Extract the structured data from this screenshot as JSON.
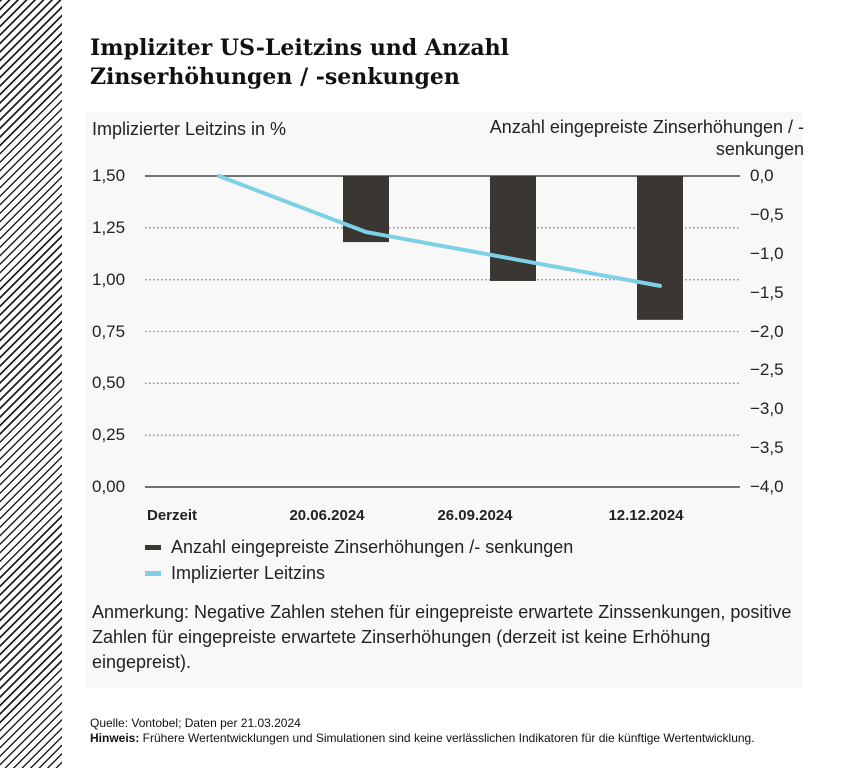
{
  "title": "Impliziter US-Leitzins und Anzahl Zinserhöhungen / -senkungen",
  "chart_data": {
    "type": "bar+line",
    "categories": [
      "Derzeit",
      "20.06.2024",
      "26.09.2024",
      "12.12.2024"
    ],
    "series": [
      {
        "name": "Anzahl eingepreiste Zinserhöhungen /- senkungen",
        "type": "bar",
        "axis": "right",
        "color": "#3a3632",
        "values": [
          0,
          -0.85,
          -1.35,
          -1.85
        ]
      },
      {
        "name": "Implizierter Leitzins",
        "type": "line",
        "axis": "left",
        "color": "#7dd0e6",
        "values": [
          1.5,
          1.23,
          1.1,
          0.97
        ]
      }
    ],
    "ylabel_left": "Implizierter Leitzins in %",
    "ylabel_right": "Anzahl eingepreiste Zinserhöhungen / -senkungen",
    "ylim_left": [
      0,
      1.5
    ],
    "ylim_right": [
      -4,
      0
    ],
    "yticks_left": [
      "1,50",
      "1,25",
      "1,00",
      "0,75",
      "0,50",
      "0,25",
      "0,00"
    ],
    "yticks_right": [
      "0,0",
      "−0,5",
      "−1,0",
      "−1,5",
      "−2,0",
      "−2,5",
      "−3,0",
      "−3,5",
      "−4,0"
    ],
    "grid": "horizontal dotted",
    "legend": "bottom"
  },
  "note": "Anmerkung: Negative Zahlen stehen für eingepreiste erwartete Zinssenkungen, positive Zahlen für eingepreiste erwartete Zinserhöhungen (derzeit ist keine Erhöhung eingepreist).",
  "source": "Quelle: Vontobel; Daten per 21.03.2024",
  "disclaimer_label": "Hinweis:",
  "disclaimer": " Frühere Wertentwicklungen und Simulationen sind keine verlässlichen Indikatoren für die künftige Wertentwicklung."
}
